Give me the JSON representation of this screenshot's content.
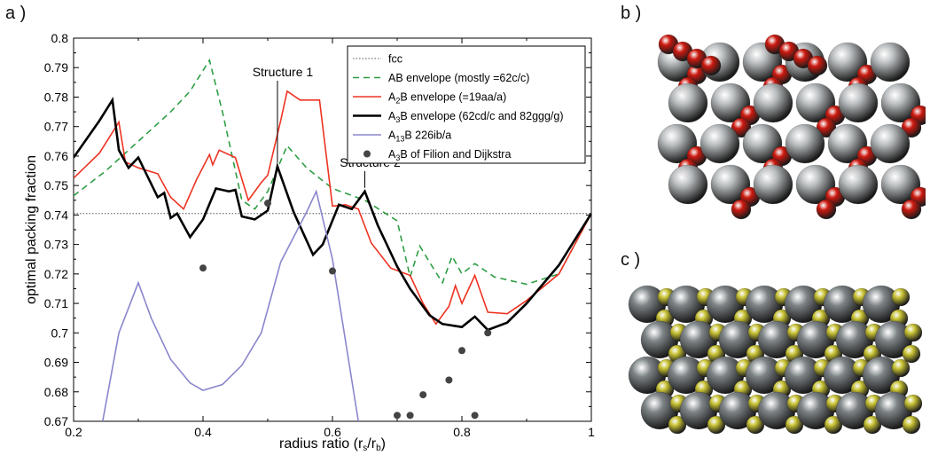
{
  "panels": {
    "a": "a )",
    "b": "b )",
    "c": "c )"
  },
  "colors": {
    "fcc": "#555555",
    "ab": "#2e9e44",
    "a2b": "#ee3322",
    "a3b": "#000000",
    "a13b": "#8a86cc",
    "filion": "#444444",
    "red_sphere": "#cc1a10",
    "silver_sphere": "#b8bcbe",
    "yellow_sphere": "#c8c234",
    "gray_sphere": "#7d8386"
  },
  "chart_data": {
    "type": "line",
    "xlabel": "radius ratio (r_s/r_b)",
    "ylabel": "optimal packing fraction",
    "xlim": [
      0.2,
      1.0
    ],
    "ylim": [
      0.67,
      0.8
    ],
    "xticks": [
      "0.2",
      "0.4",
      "0.6",
      "0.8",
      "1"
    ],
    "yticks": [
      "0.67",
      "0.68",
      "0.69",
      "0.7",
      "0.71",
      "0.72",
      "0.73",
      "0.74",
      "0.75",
      "0.76",
      "0.77",
      "0.78",
      "0.79",
      "0.8"
    ],
    "legend": {
      "position": "top-right"
    },
    "series": [
      {
        "name": "fcc",
        "style": "dotted",
        "color": "#555555",
        "points": [
          [
            0.2,
            0.7405
          ],
          [
            1.0,
            0.7405
          ]
        ]
      },
      {
        "name": "AB envelope (mostly =62c/c)",
        "style": "dashed",
        "color": "#2e9e44",
        "points": [
          [
            0.2,
            0.7465
          ],
          [
            0.25,
            0.755
          ],
          [
            0.3,
            0.765
          ],
          [
            0.35,
            0.775
          ],
          [
            0.38,
            0.782
          ],
          [
            0.41,
            0.7925
          ],
          [
            0.43,
            0.775
          ],
          [
            0.46,
            0.745
          ],
          [
            0.48,
            0.742
          ],
          [
            0.5,
            0.748
          ],
          [
            0.53,
            0.7635
          ],
          [
            0.56,
            0.756
          ],
          [
            0.6,
            0.749
          ],
          [
            0.65,
            0.745
          ],
          [
            0.7,
            0.738
          ],
          [
            0.72,
            0.719
          ],
          [
            0.735,
            0.7295
          ],
          [
            0.75,
            0.724
          ],
          [
            0.77,
            0.717
          ],
          [
            0.785,
            0.726
          ],
          [
            0.8,
            0.72
          ],
          [
            0.82,
            0.7235
          ],
          [
            0.85,
            0.719
          ],
          [
            0.9,
            0.7165
          ],
          [
            0.95,
            0.72
          ],
          [
            1.0,
            0.7405
          ]
        ]
      },
      {
        "name": "A2B envelope (=19aa/a)",
        "style": "solid",
        "color": "#ee3322",
        "points": [
          [
            0.2,
            0.7525
          ],
          [
            0.24,
            0.761
          ],
          [
            0.27,
            0.7715
          ],
          [
            0.28,
            0.758
          ],
          [
            0.3,
            0.756
          ],
          [
            0.33,
            0.754
          ],
          [
            0.35,
            0.746
          ],
          [
            0.37,
            0.742
          ],
          [
            0.39,
            0.752
          ],
          [
            0.41,
            0.7605
          ],
          [
            0.415,
            0.757
          ],
          [
            0.425,
            0.762
          ],
          [
            0.45,
            0.7595
          ],
          [
            0.47,
            0.745
          ],
          [
            0.49,
            0.751
          ],
          [
            0.5,
            0.7535
          ],
          [
            0.52,
            0.772
          ],
          [
            0.53,
            0.782
          ],
          [
            0.55,
            0.779
          ],
          [
            0.58,
            0.779
          ],
          [
            0.6,
            0.743
          ],
          [
            0.62,
            0.7435
          ],
          [
            0.64,
            0.742
          ],
          [
            0.66,
            0.7305
          ],
          [
            0.69,
            0.722
          ],
          [
            0.72,
            0.7195
          ],
          [
            0.74,
            0.71
          ],
          [
            0.76,
            0.703
          ],
          [
            0.78,
            0.709
          ],
          [
            0.79,
            0.716
          ],
          [
            0.8,
            0.71
          ],
          [
            0.82,
            0.7195
          ],
          [
            0.84,
            0.707
          ],
          [
            0.87,
            0.7065
          ],
          [
            0.9,
            0.711
          ],
          [
            0.95,
            0.72
          ],
          [
            1.0,
            0.7405
          ]
        ]
      },
      {
        "name": "A3B envelope (62cd/c and 82ggg/g)",
        "style": "solid",
        "color": "#000000",
        "points": [
          [
            0.2,
            0.7595
          ],
          [
            0.24,
            0.772
          ],
          [
            0.26,
            0.779
          ],
          [
            0.27,
            0.762
          ],
          [
            0.285,
            0.756
          ],
          [
            0.3,
            0.7595
          ],
          [
            0.33,
            0.746
          ],
          [
            0.34,
            0.7475
          ],
          [
            0.35,
            0.739
          ],
          [
            0.36,
            0.7405
          ],
          [
            0.38,
            0.7325
          ],
          [
            0.4,
            0.7385
          ],
          [
            0.42,
            0.749
          ],
          [
            0.44,
            0.748
          ],
          [
            0.45,
            0.7485
          ],
          [
            0.46,
            0.7395
          ],
          [
            0.48,
            0.7385
          ],
          [
            0.5,
            0.7415
          ],
          [
            0.515,
            0.7565
          ],
          [
            0.54,
            0.741
          ],
          [
            0.57,
            0.7265
          ],
          [
            0.585,
            0.73
          ],
          [
            0.61,
            0.7435
          ],
          [
            0.63,
            0.742
          ],
          [
            0.65,
            0.748
          ],
          [
            0.67,
            0.7365
          ],
          [
            0.7,
            0.7225
          ],
          [
            0.72,
            0.715
          ],
          [
            0.75,
            0.706
          ],
          [
            0.77,
            0.703
          ],
          [
            0.8,
            0.702
          ],
          [
            0.82,
            0.7055
          ],
          [
            0.84,
            0.701
          ],
          [
            0.87,
            0.7035
          ],
          [
            0.9,
            0.71
          ],
          [
            0.95,
            0.723
          ],
          [
            1.0,
            0.7405
          ]
        ]
      },
      {
        "name": "A13B 226ib/a",
        "style": "solid",
        "color": "#8a86cc",
        "points": [
          [
            0.245,
            0.67
          ],
          [
            0.27,
            0.7
          ],
          [
            0.3,
            0.717
          ],
          [
            0.32,
            0.705
          ],
          [
            0.35,
            0.691
          ],
          [
            0.38,
            0.683
          ],
          [
            0.4,
            0.6805
          ],
          [
            0.43,
            0.6825
          ],
          [
            0.46,
            0.689
          ],
          [
            0.49,
            0.7
          ],
          [
            0.52,
            0.724
          ],
          [
            0.56,
            0.741
          ],
          [
            0.575,
            0.748
          ],
          [
            0.6,
            0.725
          ],
          [
            0.64,
            0.67
          ]
        ]
      },
      {
        "name": "A3B of Filion and Dijkstra",
        "style": "markers",
        "color": "#444444",
        "points": [
          [
            0.4,
            0.722
          ],
          [
            0.5,
            0.744
          ],
          [
            0.6,
            0.721
          ],
          [
            0.7,
            0.672
          ],
          [
            0.72,
            0.672
          ],
          [
            0.74,
            0.679
          ],
          [
            0.78,
            0.684
          ],
          [
            0.8,
            0.694
          ],
          [
            0.82,
            0.672
          ],
          [
            0.84,
            0.7
          ]
        ]
      }
    ],
    "legend_entries": [
      {
        "text": "fcc",
        "sub": ""
      },
      {
        "text": "AB envelope (mostly =62c/c)",
        "sub": ""
      },
      {
        "text": "A2B envelope (=19aa/a)",
        "sub": "2"
      },
      {
        "text": "A3B envelope (62cd/c and 82ggg/g)",
        "sub": "3"
      },
      {
        "text": "A13B 226ib/a",
        "sub": "13"
      },
      {
        "text": "A3B of Filion and Dijkstra",
        "sub": "3"
      }
    ],
    "annotations": [
      {
        "text": "Structure 1",
        "x": 0.515,
        "y": 0.7565
      },
      {
        "text": "Structure 2",
        "x": 0.65,
        "y": 0.748
      }
    ]
  }
}
